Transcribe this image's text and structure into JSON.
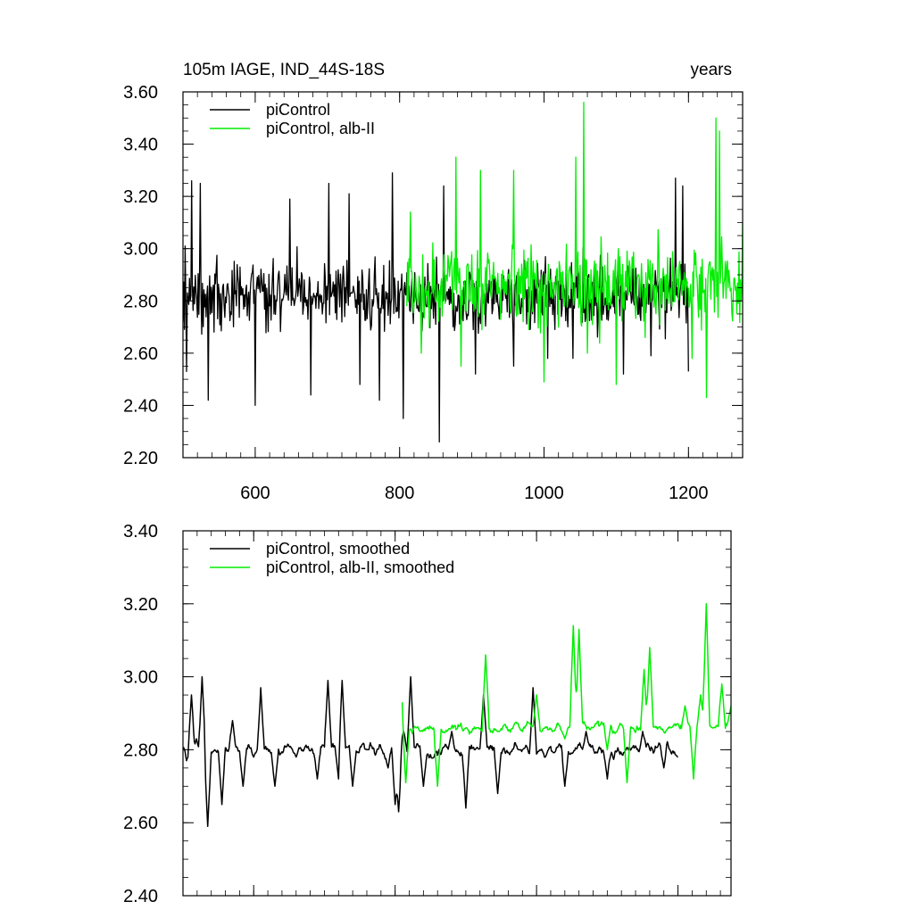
{
  "chart_data": [
    {
      "type": "line",
      "title_left": "105m IAGE, IND_44S-18S",
      "title_right": "years",
      "xlim": [
        500,
        1275
      ],
      "ylim": [
        2.2,
        3.6
      ],
      "xticks": [
        600,
        800,
        1000,
        1200
      ],
      "xtick_labels": [
        "600",
        "800",
        "1000",
        "1200"
      ],
      "yticks": [
        2.2,
        2.4,
        2.6,
        2.8,
        3.0,
        3.2,
        3.4,
        3.6
      ],
      "ytick_labels": [
        "2.20",
        "2.40",
        "2.60",
        "2.80",
        "3.00",
        "3.20",
        "3.40",
        "3.60"
      ],
      "legend_position": "top-left",
      "series": [
        {
          "name": "piControl",
          "color": "#000000",
          "x_start": 500,
          "x_end": 1200,
          "mean": 2.82,
          "amplitude": 0.13,
          "smooth": false,
          "anchors": [
            [
              500,
              2.72
            ],
            [
              503,
              3.01
            ],
            [
              505,
              2.53
            ],
            [
              512,
              3.26
            ],
            [
              524,
              3.25
            ],
            [
              535,
              2.42
            ],
            [
              600,
              2.4
            ],
            [
              648,
              3.19
            ],
            [
              677,
              2.44
            ],
            [
              702,
              3.25
            ],
            [
              730,
              3.21
            ],
            [
              745,
              2.48
            ],
            [
              772,
              2.42
            ],
            [
              790,
              3.29
            ],
            [
              805,
              2.35
            ],
            [
              855,
              2.26
            ],
            [
              861,
              3.24
            ],
            [
              905,
              2.52
            ],
            [
              958,
              2.55
            ],
            [
              1005,
              2.58
            ],
            [
              1040,
              2.58
            ],
            [
              1110,
              2.52
            ],
            [
              1148,
              2.59
            ],
            [
              1182,
              3.27
            ],
            [
              1192,
              3.24
            ],
            [
              1200,
              2.53
            ]
          ]
        },
        {
          "name": "piControl, alb-II",
          "color": "#00ee00",
          "x_start": 810,
          "x_end": 1275,
          "mean": 2.86,
          "amplitude": 0.15,
          "smooth": false,
          "anchors": [
            [
              810,
              2.78
            ],
            [
              815,
              3.14
            ],
            [
              830,
              2.6
            ],
            [
              878,
              3.35
            ],
            [
              885,
              2.55
            ],
            [
              912,
              3.3
            ],
            [
              958,
              3.3
            ],
            [
              1000,
              2.49
            ],
            [
              1044,
              3.35
            ],
            [
              1055,
              3.56
            ],
            [
              1060,
              2.6
            ],
            [
              1100,
              2.48
            ],
            [
              1140,
              2.66
            ],
            [
              1205,
              2.58
            ],
            [
              1225,
              2.43
            ],
            [
              1238,
              3.5
            ],
            [
              1243,
              3.45
            ],
            [
              1255,
              2.85
            ],
            [
              1275,
              3.1
            ]
          ]
        }
      ]
    },
    {
      "type": "line",
      "xlim": [
        500,
        1275
      ],
      "ylim": [
        2.4,
        3.4
      ],
      "xticks": [
        600,
        800,
        1000,
        1200
      ],
      "yticks": [
        2.4,
        2.6,
        2.8,
        3.0,
        3.2,
        3.4
      ],
      "ytick_labels": [
        "2.40",
        "2.60",
        "2.80",
        "3.00",
        "3.20",
        "3.40"
      ],
      "legend_position": "top-left",
      "series": [
        {
          "name": "piControl, smoothed",
          "color": "#000000",
          "x_start": 500,
          "x_end": 1200,
          "mean": 2.8,
          "amplitude": 0.05,
          "smooth": true,
          "anchors": [
            [
              500,
              2.79
            ],
            [
              503,
              2.83
            ],
            [
              505,
              2.77
            ],
            [
              512,
              2.95
            ],
            [
              519,
              2.83
            ],
            [
              527,
              3.0
            ],
            [
              535,
              2.59
            ],
            [
              545,
              2.8
            ],
            [
              555,
              2.65
            ],
            [
              570,
              2.88
            ],
            [
              585,
              2.7
            ],
            [
              600,
              2.78
            ],
            [
              610,
              2.97
            ],
            [
              630,
              2.7
            ],
            [
              660,
              2.78
            ],
            [
              690,
              2.72
            ],
            [
              705,
              2.99
            ],
            [
              720,
              2.72
            ],
            [
              725,
              2.99
            ],
            [
              740,
              2.7
            ],
            [
              760,
              2.8
            ],
            [
              790,
              2.75
            ],
            [
              800,
              2.65
            ],
            [
              805,
              2.63
            ],
            [
              812,
              2.85
            ],
            [
              822,
              3.0
            ],
            [
              840,
              2.7
            ],
            [
              880,
              2.85
            ],
            [
              900,
              2.64
            ],
            [
              925,
              2.95
            ],
            [
              945,
              2.68
            ],
            [
              975,
              2.8
            ],
            [
              995,
              2.97
            ],
            [
              1040,
              2.7
            ],
            [
              1070,
              2.85
            ],
            [
              1100,
              2.72
            ],
            [
              1150,
              2.85
            ],
            [
              1180,
              2.75
            ],
            [
              1200,
              2.78
            ]
          ]
        },
        {
          "name": "piControl, alb-II, smoothed",
          "color": "#00ee00",
          "x_start": 810,
          "x_end": 1275,
          "mean": 2.86,
          "amplitude": 0.05,
          "smooth": true,
          "anchors": [
            [
              810,
              2.93
            ],
            [
              815,
              2.71
            ],
            [
              830,
              2.86
            ],
            [
              860,
              2.7
            ],
            [
              900,
              2.86
            ],
            [
              928,
              3.06
            ],
            [
              945,
              2.85
            ],
            [
              1000,
              2.95
            ],
            [
              1040,
              2.83
            ],
            [
              1052,
              3.14
            ],
            [
              1060,
              3.13
            ],
            [
              1080,
              2.86
            ],
            [
              1100,
              2.8
            ],
            [
              1128,
              2.71
            ],
            [
              1152,
              3.02
            ],
            [
              1160,
              3.08
            ],
            [
              1190,
              2.86
            ],
            [
              1210,
              2.92
            ],
            [
              1222,
              2.72
            ],
            [
              1232,
              2.95
            ],
            [
              1240,
              3.2
            ],
            [
              1250,
              2.86
            ],
            [
              1262,
              2.98
            ],
            [
              1275,
              2.92
            ]
          ]
        }
      ]
    }
  ]
}
